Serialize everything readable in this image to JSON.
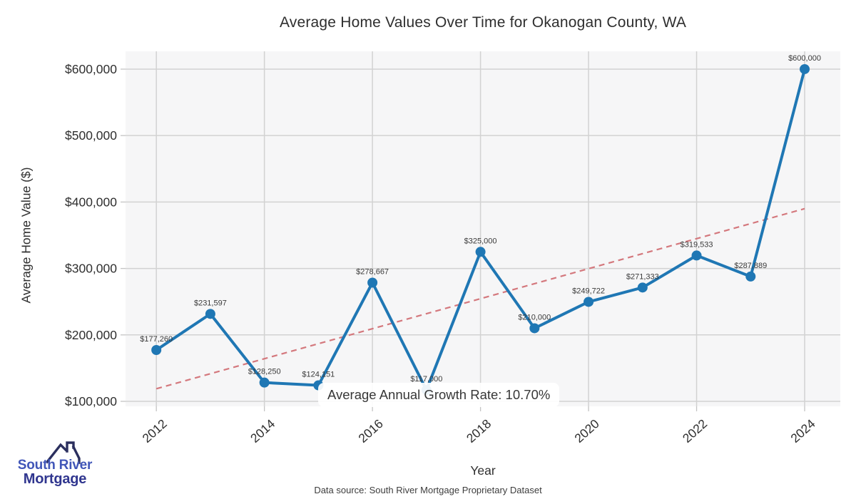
{
  "chart_data": {
    "type": "line",
    "title": "Average Home Values Over Time for Okanogan County, WA",
    "xlabel": "Year",
    "ylabel": "Average Home Value ($)",
    "x": [
      2012,
      2013,
      2014,
      2015,
      2016,
      2017,
      2018,
      2019,
      2020,
      2021,
      2022,
      2023,
      2024
    ],
    "values": [
      177260,
      231597,
      128250,
      124151,
      278667,
      117000,
      325000,
      210000,
      249722,
      271333,
      319533,
      287889,
      600000
    ],
    "point_labels": [
      "$177,260",
      "$231,597",
      "$128,250",
      "$124,151",
      "$278,667",
      "$117,000",
      "$325,000",
      "$210,000",
      "$249,722",
      "$271,333",
      "$319,533",
      "$287,889",
      "$600,000"
    ],
    "xticks": [
      2012,
      2014,
      2016,
      2018,
      2020,
      2022,
      2024
    ],
    "xtick_labels": [
      "2012",
      "2014",
      "2016",
      "2018",
      "2020",
      "2022",
      "2024"
    ],
    "yticks": [
      100000,
      200000,
      300000,
      400000,
      500000,
      600000
    ],
    "ytick_labels": [
      "$100,000",
      "$200,000",
      "$300,000",
      "$400,000",
      "$500,000",
      "$600,000"
    ],
    "xlim": [
      2011.43,
      2024.66
    ],
    "ylim": [
      92500,
      626800
    ],
    "grid": true,
    "legend": "none",
    "line_color": "#1f77b4",
    "marker_color": "#1f77b4",
    "plot_bg": "#f6f6f7",
    "grid_color": "#d2d2d2",
    "tick_color": "#c4c4c4",
    "label_color": "#3a3a3a",
    "trend": {
      "name": "average annual growth trendline",
      "x": [
        2012,
        2024
      ],
      "values": [
        119000,
        390000
      ],
      "color": "#d4787d",
      "style": "dashed"
    }
  },
  "annotation": {
    "growth_rate_label": "Average Annual Growth Rate: 10.70%"
  },
  "logo": {
    "name": "South River Mortgage",
    "line1": "South River",
    "line2": "Mortgage",
    "roof_color": "#2b2f5e",
    "line1_color": "#4156b8",
    "line2_color": "#30368f"
  },
  "footer": {
    "data_source": "Data source: South River Mortgage Proprietary Dataset"
  }
}
